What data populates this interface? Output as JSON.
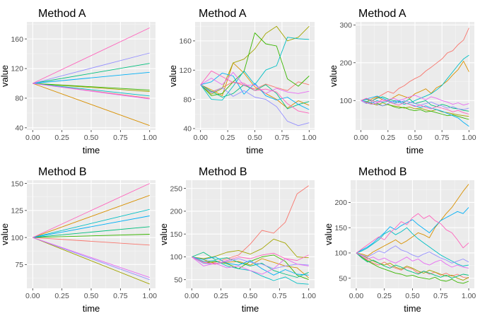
{
  "colors": {
    "panel_bg": "#ebebeb",
    "grid_major": "#ffffff",
    "grid_minor": "#f5f5f5",
    "tick": "#333333",
    "series": [
      "#f8766d",
      "#d89000",
      "#a3a500",
      "#39b600",
      "#00bf7d",
      "#00bfc4",
      "#00b0f6",
      "#9590ff",
      "#e76bf3",
      "#ff62bc"
    ]
  },
  "chart_data": [
    {
      "type": "line",
      "title": "Method A",
      "xlabel": "time",
      "ylabel": "value",
      "xlim": [
        -0.05,
        1.05
      ],
      "ylim": [
        37,
        183
      ],
      "xticks": [
        0,
        0.25,
        0.5,
        0.75,
        1
      ],
      "xtick_labels": [
        "0.00",
        "0.25",
        "0.50",
        "0.75",
        "1.00"
      ],
      "yticks": [
        40,
        80,
        120,
        160
      ],
      "ytick_labels": [
        "40",
        "80",
        "120",
        "160"
      ],
      "grid": true,
      "x": [
        0,
        1
      ],
      "series": [
        {
          "values": [
            100,
            80
          ]
        },
        {
          "values": [
            100,
            43
          ]
        },
        {
          "values": [
            100,
            89
          ]
        },
        {
          "values": [
            100,
            91
          ]
        },
        {
          "values": [
            100,
            127
          ]
        },
        {
          "values": [
            100,
            83
          ]
        },
        {
          "values": [
            100,
            115
          ]
        },
        {
          "values": [
            100,
            141
          ]
        },
        {
          "values": [
            100,
            79
          ]
        },
        {
          "values": [
            100,
            175
          ]
        }
      ]
    },
    {
      "type": "line",
      "title": "Method A",
      "xlabel": "time",
      "ylabel": "value",
      "xlim": [
        -0.05,
        1.05
      ],
      "ylim": [
        38,
        186
      ],
      "xticks": [
        0,
        0.25,
        0.5,
        0.75,
        1
      ],
      "xtick_labels": [
        "0.00",
        "0.25",
        "0.50",
        "0.75",
        "1.00"
      ],
      "yticks": [
        40,
        80,
        120,
        160
      ],
      "ytick_labels": [
        "40",
        "80",
        "120",
        "160"
      ],
      "grid": true,
      "x": [
        0,
        0.1,
        0.2,
        0.3,
        0.4,
        0.5,
        0.6,
        0.7,
        0.8,
        0.9,
        1
      ],
      "series": [
        {
          "values": [
            100,
            90,
            96,
            104,
            99,
            94,
            101,
            96,
            92,
            104,
            100
          ]
        },
        {
          "values": [
            100,
            93,
            85,
            130,
            116,
            97,
            88,
            80,
            68,
            78,
            72
          ]
        },
        {
          "values": [
            100,
            87,
            95,
            130,
            135,
            149,
            170,
            180,
            160,
            165,
            180
          ]
        },
        {
          "values": [
            100,
            85,
            88,
            104,
            118,
            171,
            156,
            153,
            108,
            98,
            112
          ]
        },
        {
          "values": [
            100,
            91,
            83,
            88,
            100,
            92,
            100,
            88,
            67,
            73,
            77
          ]
        },
        {
          "values": [
            100,
            80,
            79,
            98,
            119,
            100,
            120,
            126,
            165,
            163,
            162
          ]
        },
        {
          "values": [
            100,
            104,
            116,
            112,
            87,
            102,
            85,
            79,
            83,
            73,
            66
          ]
        },
        {
          "values": [
            100,
            89,
            96,
            84,
            92,
            83,
            80,
            70,
            50,
            44,
            48
          ]
        },
        {
          "values": [
            100,
            109,
            100,
            117,
            99,
            100,
            88,
            95,
            90,
            88,
            91
          ]
        },
        {
          "values": [
            100,
            119,
            111,
            103,
            102,
            92,
            94,
            90,
            74,
            64,
            61
          ]
        }
      ]
    },
    {
      "type": "line",
      "title": "Method A",
      "xlabel": "time",
      "ylabel": "value",
      "xlim": [
        -0.05,
        1.05
      ],
      "ylim": [
        22,
        308
      ],
      "xticks": [
        0,
        0.25,
        0.5,
        0.75,
        1
      ],
      "xtick_labels": [
        "0.00",
        "0.25",
        "0.50",
        "0.75",
        "1.00"
      ],
      "yticks": [
        100,
        200,
        300
      ],
      "ytick_labels": [
        "100",
        "200",
        "300"
      ],
      "grid": true,
      "x": [
        0,
        0.05,
        0.1,
        0.15,
        0.2,
        0.25,
        0.3,
        0.35,
        0.4,
        0.45,
        0.5,
        0.55,
        0.6,
        0.65,
        0.7,
        0.75,
        0.8,
        0.85,
        0.9,
        0.95,
        1
      ],
      "series": [
        {
          "values": [
            100,
            104,
            98,
            108,
            116,
            124,
            119,
            132,
            139,
            150,
            158,
            165,
            178,
            188,
            199,
            210,
            226,
            232,
            248,
            260,
            292
          ]
        },
        {
          "values": [
            100,
            96,
            104,
            110,
            102,
            98,
            108,
            116,
            111,
            106,
            118,
            124,
            131,
            119,
            134,
            141,
            152,
            168,
            182,
            204,
            176
          ]
        },
        {
          "values": [
            100,
            97,
            92,
            88,
            94,
            89,
            86,
            84,
            80,
            83,
            78,
            80,
            75,
            72,
            76,
            70,
            68,
            65,
            62,
            60,
            58
          ]
        },
        {
          "values": [
            100,
            94,
            90,
            93,
            86,
            90,
            84,
            80,
            82,
            76,
            73,
            76,
            70,
            72,
            68,
            64,
            60,
            62,
            58,
            54,
            50
          ]
        },
        {
          "values": [
            100,
            103,
            99,
            106,
            110,
            104,
            100,
            98,
            96,
            104,
            92,
            96,
            100,
            88,
            84,
            90,
            86,
            80,
            78,
            74,
            72
          ]
        },
        {
          "values": [
            100,
            98,
            94,
            100,
            95,
            98,
            92,
            96,
            90,
            94,
            100,
            106,
            112,
            118,
            128,
            140,
            158,
            176,
            194,
            210,
            220
          ]
        },
        {
          "values": [
            100,
            104,
            108,
            112,
            106,
            100,
            96,
            100,
            94,
            90,
            86,
            82,
            86,
            80,
            76,
            72,
            66,
            60,
            54,
            42,
            32
          ]
        },
        {
          "values": [
            100,
            92,
            96,
            90,
            86,
            92,
            98,
            94,
            100,
            96,
            92,
            88,
            92,
            96,
            90,
            86,
            80,
            84,
            78,
            76,
            80
          ]
        },
        {
          "values": [
            100,
            95,
            90,
            94,
            98,
            102,
            106,
            100,
            104,
            110,
            114,
            108,
            102,
            110,
            106,
            100,
            96,
            90,
            94,
            88,
            92
          ]
        },
        {
          "values": [
            100,
            106,
            100,
            96,
            102,
            98,
            92,
            88,
            94,
            90,
            84,
            88,
            82,
            78,
            84,
            80,
            76,
            70,
            74,
            68,
            64
          ]
        }
      ]
    },
    {
      "type": "line",
      "title": "Method B",
      "xlabel": "time",
      "ylabel": "value",
      "xlim": [
        -0.05,
        1.05
      ],
      "ylim": [
        53,
        153
      ],
      "xticks": [
        0,
        0.25,
        0.5,
        0.75,
        1
      ],
      "xtick_labels": [
        "0.00",
        "0.25",
        "0.50",
        "0.75",
        "1.00"
      ],
      "yticks": [
        75,
        100,
        125,
        150
      ],
      "ytick_labels": [
        "75",
        "100",
        "125",
        "150"
      ],
      "grid": true,
      "x": [
        0,
        1
      ],
      "series": [
        {
          "values": [
            100,
            93
          ]
        },
        {
          "values": [
            100,
            139
          ]
        },
        {
          "values": [
            100,
            57
          ]
        },
        {
          "values": [
            100,
            103
          ]
        },
        {
          "values": [
            100,
            110
          ]
        },
        {
          "values": [
            100,
            126
          ]
        },
        {
          "values": [
            100,
            120
          ]
        },
        {
          "values": [
            100,
            61
          ]
        },
        {
          "values": [
            100,
            63
          ]
        },
        {
          "values": [
            100,
            150
          ]
        }
      ]
    },
    {
      "type": "line",
      "title": "Method B",
      "xlabel": "time",
      "ylabel": "value",
      "xlim": [
        -0.05,
        1.05
      ],
      "ylim": [
        31,
        268
      ],
      "xticks": [
        0,
        0.25,
        0.5,
        0.75,
        1
      ],
      "xtick_labels": [
        "0.00",
        "0.25",
        "0.50",
        "0.75",
        "1.00"
      ],
      "yticks": [
        50,
        100,
        150,
        200,
        250
      ],
      "ytick_labels": [
        "50",
        "100",
        "150",
        "200",
        "250"
      ],
      "grid": true,
      "x": [
        0,
        0.1,
        0.2,
        0.3,
        0.4,
        0.5,
        0.6,
        0.7,
        0.8,
        0.9,
        1
      ],
      "series": [
        {
          "values": [
            100,
            90,
            88,
            96,
            104,
            128,
            158,
            152,
            176,
            238,
            256
          ]
        },
        {
          "values": [
            100,
            94,
            85,
            88,
            90,
            82,
            96,
            88,
            80,
            76,
            54
          ]
        },
        {
          "values": [
            100,
            96,
            101,
            110,
            114,
            106,
            118,
            139,
            130,
            100,
            98
          ]
        },
        {
          "values": [
            100,
            86,
            90,
            85,
            74,
            90,
            100,
            104,
            90,
            60,
            50
          ]
        },
        {
          "values": [
            100,
            110,
            94,
            98,
            88,
            80,
            86,
            70,
            62,
            55,
            66
          ]
        },
        {
          "values": [
            100,
            90,
            92,
            80,
            74,
            70,
            58,
            48,
            56,
            42,
            40
          ]
        },
        {
          "values": [
            100,
            94,
            100,
            86,
            82,
            92,
            74,
            60,
            72,
            62,
            60
          ]
        },
        {
          "values": [
            100,
            86,
            84,
            90,
            96,
            88,
            84,
            74,
            80,
            84,
            82
          ]
        },
        {
          "values": [
            100,
            80,
            86,
            76,
            80,
            70,
            62,
            74,
            96,
            84,
            80
          ]
        },
        {
          "values": [
            100,
            88,
            84,
            92,
            100,
            96,
            104,
            108,
            96,
            92,
            104
          ]
        }
      ]
    },
    {
      "type": "line",
      "title": "Method B",
      "xlabel": "time",
      "ylabel": "value",
      "xlim": [
        -0.05,
        1.05
      ],
      "ylim": [
        30,
        244
      ],
      "xticks": [
        0,
        0.25,
        0.5,
        0.75,
        1
      ],
      "xtick_labels": [
        "0.00",
        "0.25",
        "0.50",
        "0.75",
        "1.00"
      ],
      "yticks": [
        50,
        100,
        150,
        200
      ],
      "ytick_labels": [
        "50",
        "100",
        "150",
        "200"
      ],
      "grid": true,
      "x": [
        0,
        0.05,
        0.1,
        0.15,
        0.2,
        0.25,
        0.3,
        0.35,
        0.4,
        0.45,
        0.5,
        0.55,
        0.6,
        0.65,
        0.7,
        0.75,
        0.8,
        0.85,
        0.9,
        0.95,
        1
      ],
      "series": [
        {
          "values": [
            100,
            92,
            86,
            80,
            76,
            82,
            74,
            70,
            66,
            72,
            68,
            60,
            64,
            58,
            62,
            56,
            60,
            54,
            58,
            52,
            50
          ]
        },
        {
          "values": [
            100,
            98,
            94,
            102,
            108,
            114,
            120,
            126,
            118,
            124,
            132,
            140,
            136,
            130,
            150,
            164,
            178,
            190,
            206,
            222,
            236
          ]
        },
        {
          "values": [
            100,
            96,
            90,
            84,
            80,
            76,
            80,
            72,
            68,
            74,
            70,
            64,
            60,
            66,
            62,
            58,
            54,
            56,
            50,
            46,
            52
          ]
        },
        {
          "values": [
            100,
            92,
            84,
            78,
            72,
            68,
            64,
            60,
            58,
            54,
            56,
            52,
            50,
            48,
            52,
            46,
            44,
            48,
            42,
            40,
            44
          ]
        },
        {
          "values": [
            100,
            90,
            82,
            86,
            80,
            74,
            70,
            76,
            72,
            66,
            62,
            58,
            64,
            60,
            56,
            52,
            56,
            50,
            54,
            58,
            56
          ]
        },
        {
          "values": [
            100,
            104,
            110,
            118,
            126,
            138,
            144,
            136,
            142,
            150,
            138,
            128,
            120,
            112,
            104,
            96,
            90,
            84,
            78,
            74,
            76
          ]
        },
        {
          "values": [
            100,
            106,
            112,
            120,
            130,
            140,
            152,
            146,
            154,
            160,
            166,
            156,
            148,
            140,
            152,
            164,
            170,
            176,
            182,
            178,
            190
          ]
        },
        {
          "values": [
            100,
            96,
            92,
            98,
            104,
            100,
            108,
            114,
            106,
            102,
            96,
            92,
            98,
            102,
            96,
            90,
            86,
            80,
            84,
            88,
            82
          ]
        },
        {
          "values": [
            100,
            94,
            88,
            92,
            86,
            90,
            84,
            80,
            86,
            92,
            84,
            88,
            80,
            76,
            82,
            86,
            78,
            72,
            76,
            72,
            70
          ]
        },
        {
          "values": [
            100,
            108,
            116,
            124,
            132,
            126,
            140,
            150,
            162,
            156,
            170,
            178,
            168,
            174,
            164,
            158,
            146,
            140,
            126,
            110,
            120
          ]
        }
      ]
    }
  ]
}
